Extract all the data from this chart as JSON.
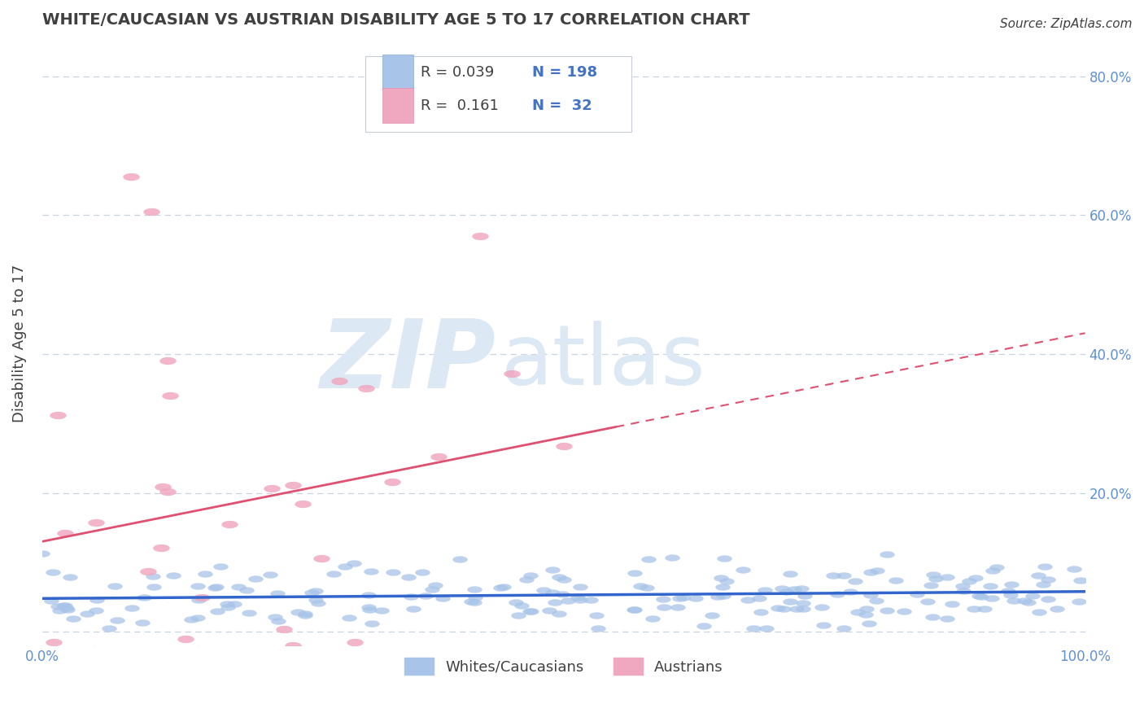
{
  "title": "WHITE/CAUCASIAN VS AUSTRIAN DISABILITY AGE 5 TO 17 CORRELATION CHART",
  "source": "Source: ZipAtlas.com",
  "xlabel": "",
  "ylabel": "Disability Age 5 to 17",
  "xlim": [
    0.0,
    1.0
  ],
  "ylim": [
    -0.02,
    0.85
  ],
  "x_ticks": [
    0.0,
    0.1,
    0.2,
    0.3,
    0.4,
    0.5,
    0.6,
    0.7,
    0.8,
    0.9,
    1.0
  ],
  "x_tick_labels": [
    "0.0%",
    "",
    "",
    "",
    "",
    "",
    "",
    "",
    "",
    "",
    "100.0%"
  ],
  "y_ticks": [
    0.0,
    0.2,
    0.4,
    0.6,
    0.8
  ],
  "y_tick_labels": [
    "",
    "20.0%",
    "40.0%",
    "60.0%",
    "80.0%"
  ],
  "legend_blue_label": "Whites/Caucasians",
  "legend_pink_label": "Austrians",
  "blue_color": "#a8c4e8",
  "pink_color": "#f0a8c0",
  "blue_line_color": "#3366cc",
  "pink_line_color": "#e05070",
  "title_color": "#404040",
  "axis_color": "#6090d0",
  "grid_color": "#c8d4e0",
  "watermark_zip": "ZIP",
  "watermark_atlas": "atlas",
  "watermark_color": "#dce8f4",
  "background_color": "#ffffff",
  "legend_text_color": "#404040",
  "legend_value_color": "#4472c4",
  "pink_intercept": 0.13,
  "pink_slope_full": 0.3,
  "blue_intercept": 0.048,
  "blue_slope_full": 0.01
}
